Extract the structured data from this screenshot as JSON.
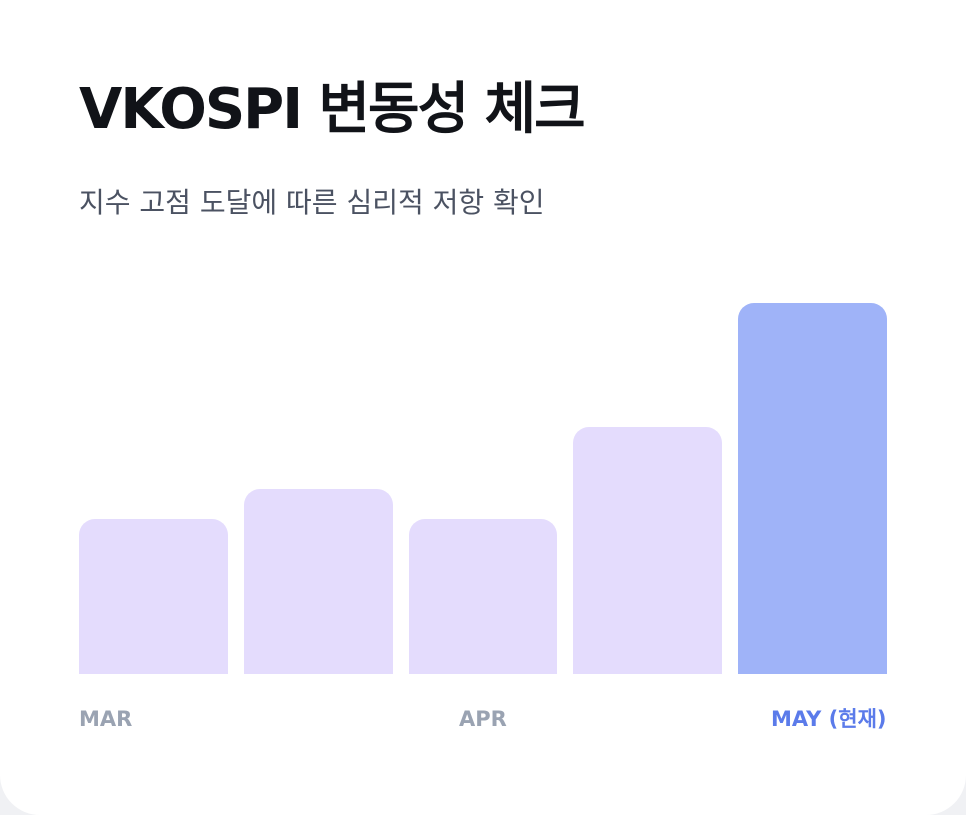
{
  "card": {
    "title": "VKOSPI 변동성 체크",
    "subtitle": "지수 고점 도달에 따른 심리적 저항 확인"
  },
  "colors": {
    "bar": "#e4dcfd",
    "bar_current": "#9fb3f8",
    "label": "#9aa3b2",
    "label_current": "#5b7bea"
  },
  "chart_data": {
    "type": "bar",
    "title": "VKOSPI 변동성 체크",
    "subtitle": "지수 고점 도달에 따른 심리적 저항 확인",
    "values": [
      50,
      60,
      50,
      80,
      120
    ],
    "highlight_index": 4,
    "ylim": [
      0,
      120
    ],
    "grid": false,
    "axis_labels": [
      {
        "index": 0,
        "text": "MAR",
        "align": "left"
      },
      {
        "index": 2,
        "text": "APR",
        "align": "center"
      },
      {
        "index": 4,
        "text": "MAY (현재)",
        "align": "right"
      }
    ]
  }
}
